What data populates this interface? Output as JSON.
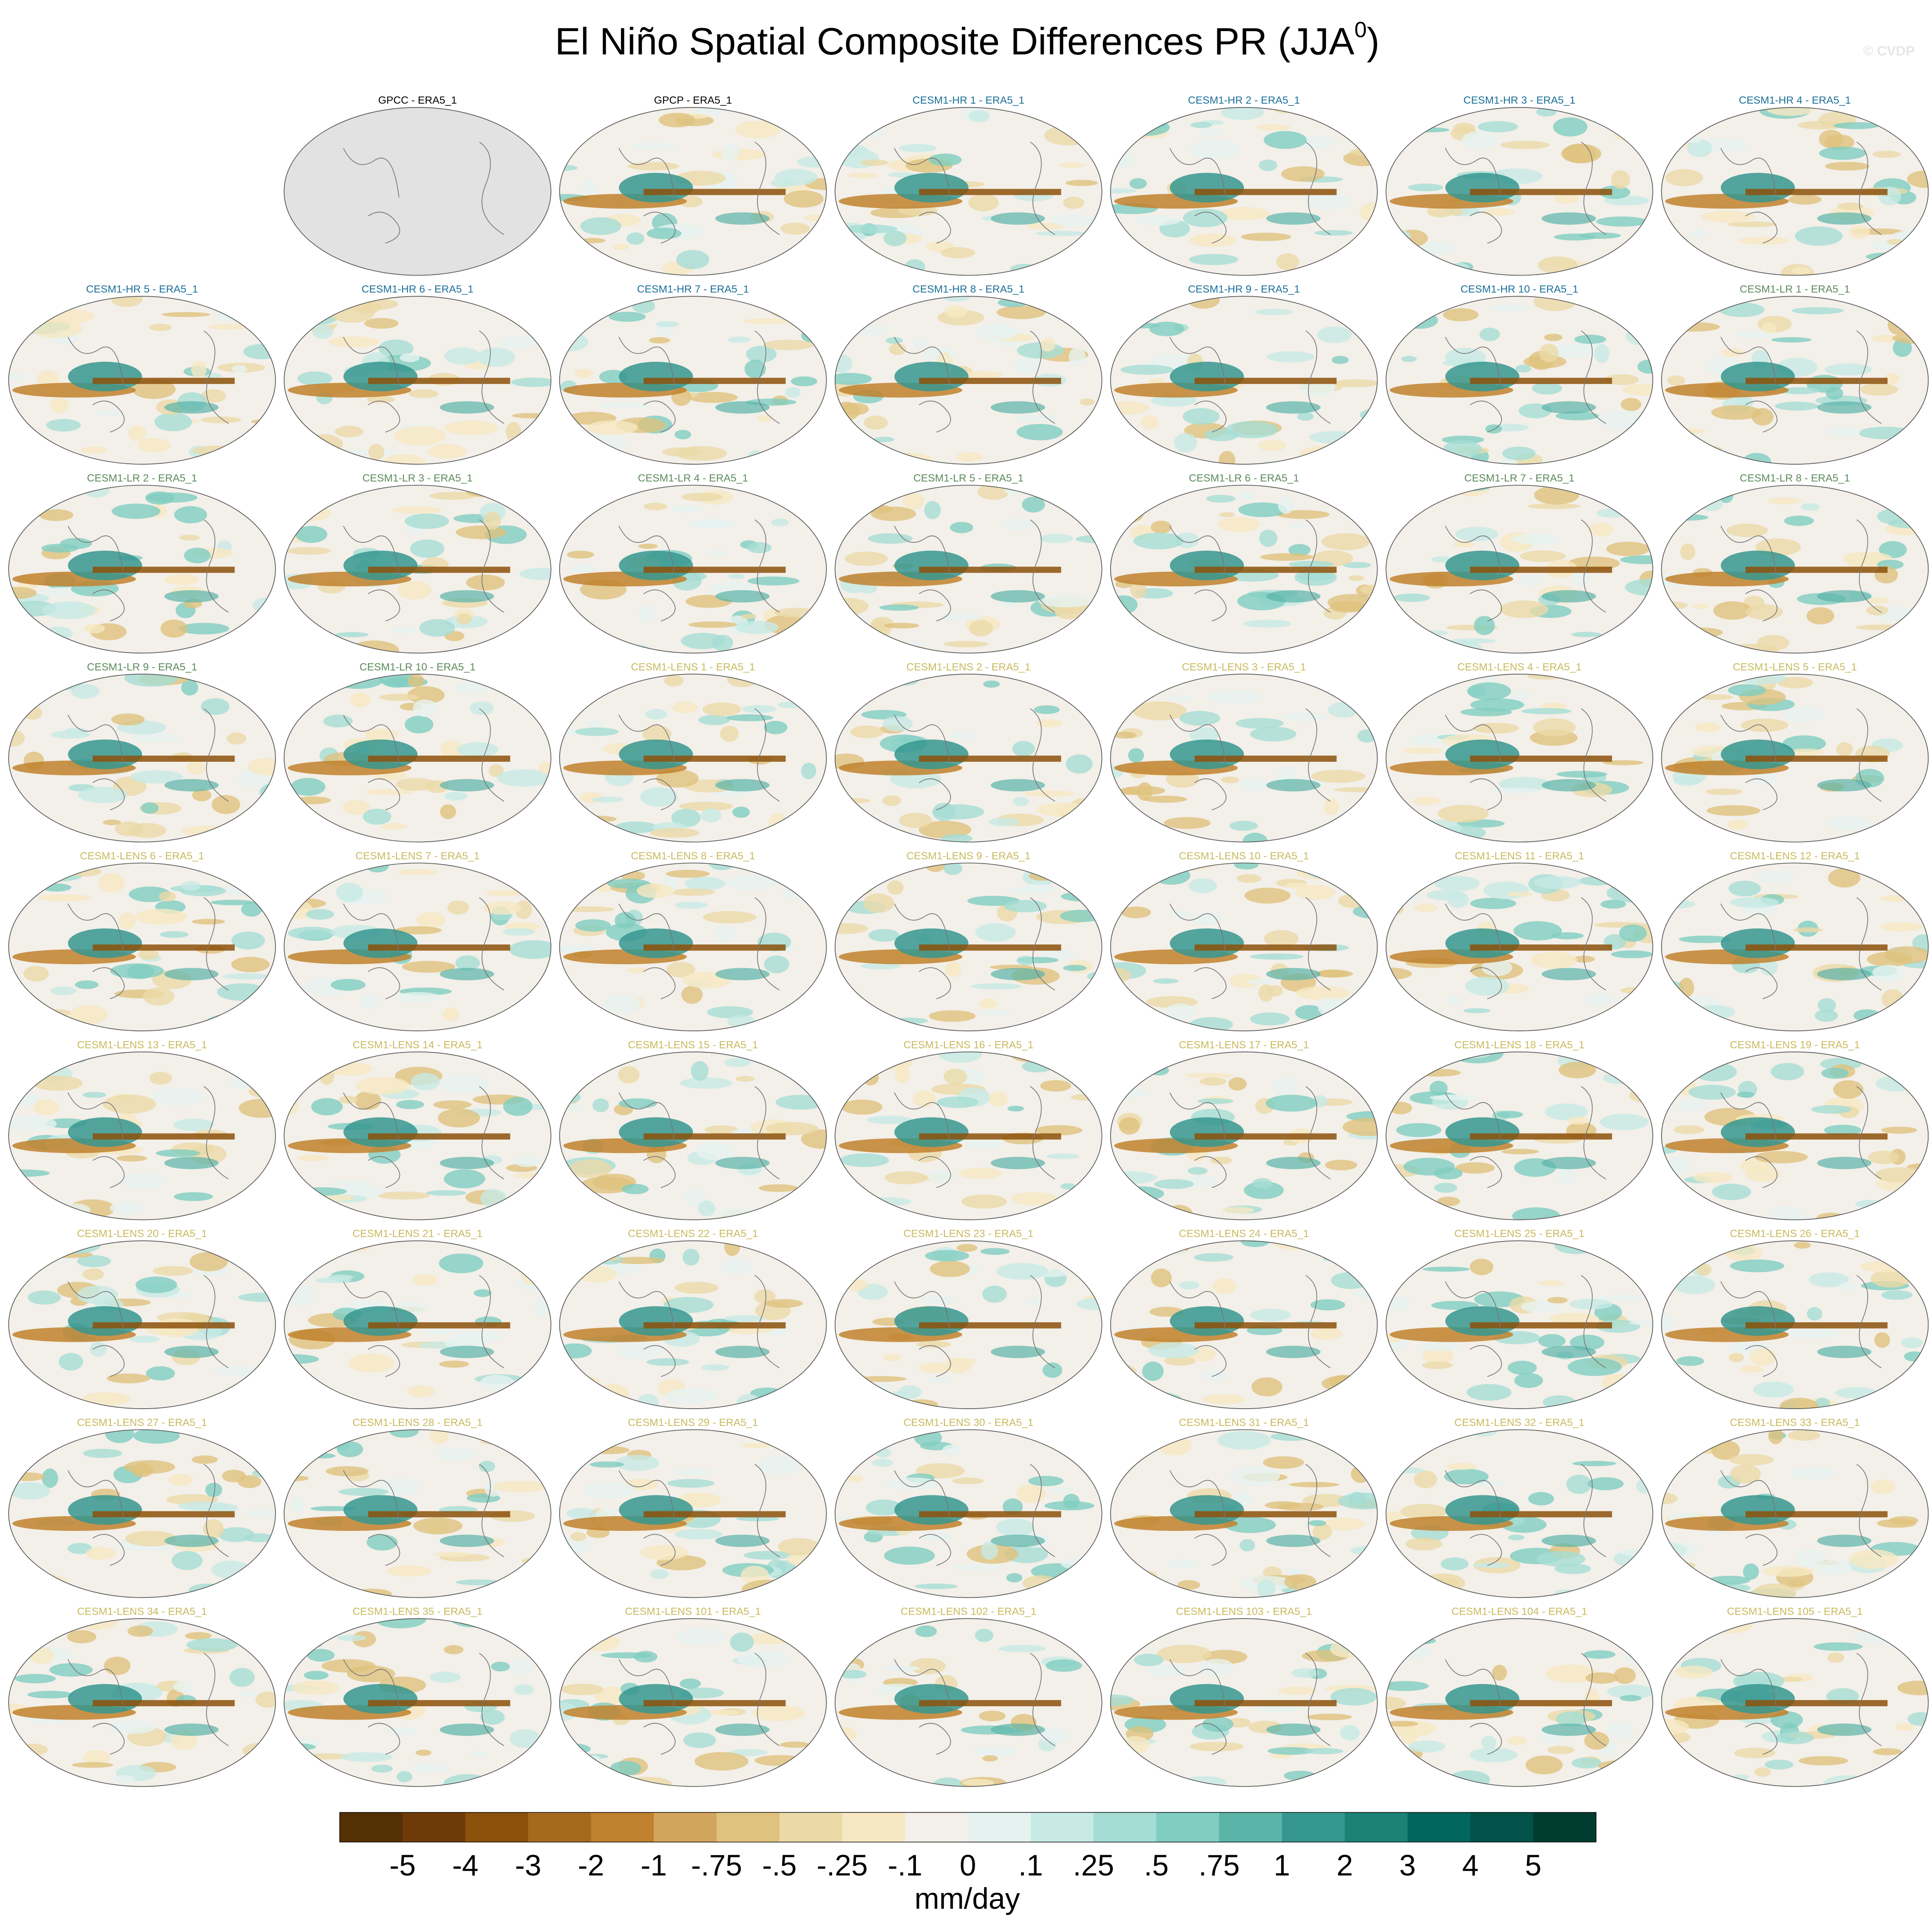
{
  "title": "El Niño Spatial Composite Differences PR (JJA",
  "title_superscript": "0",
  "title_end": ")",
  "watermark": "© CVDP",
  "empty_slots": 1,
  "panels": [
    {
      "title": "GPCC - ERA5_1",
      "color": "#000000",
      "map_color": "#e2e2e2"
    },
    {
      "title": "GPCP - ERA5_1",
      "color": "#000000"
    },
    {
      "title": "CESM1-HR 1 - ERA5_1",
      "color": "#1b6f99"
    },
    {
      "title": "CESM1-HR 2 - ERA5_1",
      "color": "#1b6f99"
    },
    {
      "title": "CESM1-HR 3 - ERA5_1",
      "color": "#1b6f99"
    },
    {
      "title": "CESM1-HR 4 - ERA5_1",
      "color": "#1b6f99"
    },
    {
      "title": "CESM1-HR 5 - ERA5_1",
      "color": "#1b6f99"
    },
    {
      "title": "CESM1-HR 6 - ERA5_1",
      "color": "#1b6f99"
    },
    {
      "title": "CESM1-HR 7 - ERA5_1",
      "color": "#1b6f99"
    },
    {
      "title": "CESM1-HR 8 - ERA5_1",
      "color": "#1b6f99"
    },
    {
      "title": "CESM1-HR 9 - ERA5_1",
      "color": "#1b6f99"
    },
    {
      "title": "CESM1-HR 10 - ERA5_1",
      "color": "#1b6f99"
    },
    {
      "title": "CESM1-LR 1 - ERA5_1",
      "color": "#5b8a5b"
    },
    {
      "title": "CESM1-LR 2 - ERA5_1",
      "color": "#5b8a5b"
    },
    {
      "title": "CESM1-LR 3 - ERA5_1",
      "color": "#5b8a5b"
    },
    {
      "title": "CESM1-LR 4 - ERA5_1",
      "color": "#5b8a5b"
    },
    {
      "title": "CESM1-LR 5 - ERA5_1",
      "color": "#5b8a5b"
    },
    {
      "title": "CESM1-LR 6 - ERA5_1",
      "color": "#5b8a5b"
    },
    {
      "title": "CESM1-LR 7 - ERA5_1",
      "color": "#5b8a5b"
    },
    {
      "title": "CESM1-LR 8 - ERA5_1",
      "color": "#5b8a5b"
    },
    {
      "title": "CESM1-LR 9 - ERA5_1",
      "color": "#5b8a5b"
    },
    {
      "title": "CESM1-LR 10 - ERA5_1",
      "color": "#5b8a5b"
    },
    {
      "title": "CESM1-LENS 1 - ERA5_1",
      "color": "#c9ba5e"
    },
    {
      "title": "CESM1-LENS 2 - ERA5_1",
      "color": "#c9ba5e"
    },
    {
      "title": "CESM1-LENS 3 - ERA5_1",
      "color": "#c9ba5e"
    },
    {
      "title": "CESM1-LENS 4 - ERA5_1",
      "color": "#c9ba5e"
    },
    {
      "title": "CESM1-LENS 5 - ERA5_1",
      "color": "#c9ba5e"
    },
    {
      "title": "CESM1-LENS 6 - ERA5_1",
      "color": "#c9ba5e"
    },
    {
      "title": "CESM1-LENS 7 - ERA5_1",
      "color": "#c9ba5e"
    },
    {
      "title": "CESM1-LENS 8 - ERA5_1",
      "color": "#c9ba5e"
    },
    {
      "title": "CESM1-LENS 9 - ERA5_1",
      "color": "#c9ba5e"
    },
    {
      "title": "CESM1-LENS 10 - ERA5_1",
      "color": "#c9ba5e"
    },
    {
      "title": "CESM1-LENS 11 - ERA5_1",
      "color": "#c9ba5e"
    },
    {
      "title": "CESM1-LENS 12 - ERA5_1",
      "color": "#c9ba5e"
    },
    {
      "title": "CESM1-LENS 13 - ERA5_1",
      "color": "#c9ba5e"
    },
    {
      "title": "CESM1-LENS 14 - ERA5_1",
      "color": "#c9ba5e"
    },
    {
      "title": "CESM1-LENS 15 - ERA5_1",
      "color": "#c9ba5e"
    },
    {
      "title": "CESM1-LENS 16 - ERA5_1",
      "color": "#c9ba5e"
    },
    {
      "title": "CESM1-LENS 17 - ERA5_1",
      "color": "#c9ba5e"
    },
    {
      "title": "CESM1-LENS 18 - ERA5_1",
      "color": "#c9ba5e"
    },
    {
      "title": "CESM1-LENS 19 - ERA5_1",
      "color": "#c9ba5e"
    },
    {
      "title": "CESM1-LENS 20 - ERA5_1",
      "color": "#c9ba5e"
    },
    {
      "title": "CESM1-LENS 21 - ERA5_1",
      "color": "#c9ba5e"
    },
    {
      "title": "CESM1-LENS 22 - ERA5_1",
      "color": "#c9ba5e"
    },
    {
      "title": "CESM1-LENS 23 - ERA5_1",
      "color": "#c9ba5e"
    },
    {
      "title": "CESM1-LENS 24 - ERA5_1",
      "color": "#c9ba5e"
    },
    {
      "title": "CESM1-LENS 25 - ERA5_1",
      "color": "#c9ba5e"
    },
    {
      "title": "CESM1-LENS 26 - ERA5_1",
      "color": "#c9ba5e"
    },
    {
      "title": "CESM1-LENS 27 - ERA5_1",
      "color": "#c9ba5e"
    },
    {
      "title": "CESM1-LENS 28 - ERA5_1",
      "color": "#c9ba5e"
    },
    {
      "title": "CESM1-LENS 29 - ERA5_1",
      "color": "#c9ba5e"
    },
    {
      "title": "CESM1-LENS 30 - ERA5_1",
      "color": "#c9ba5e"
    },
    {
      "title": "CESM1-LENS 31 - ERA5_1",
      "color": "#c9ba5e"
    },
    {
      "title": "CESM1-LENS 32 - ERA5_1",
      "color": "#c9ba5e"
    },
    {
      "title": "CESM1-LENS 33 - ERA5_1",
      "color": "#c9ba5e"
    },
    {
      "title": "CESM1-LENS 34 - ERA5_1",
      "color": "#c9ba5e"
    },
    {
      "title": "CESM1-LENS 35 - ERA5_1",
      "color": "#c9ba5e"
    },
    {
      "title": "CESM1-LENS 101 - ERA5_1",
      "color": "#c9ba5e"
    },
    {
      "title": "CESM1-LENS 102 - ERA5_1",
      "color": "#c9ba5e"
    },
    {
      "title": "CESM1-LENS 103 - ERA5_1",
      "color": "#c9ba5e"
    },
    {
      "title": "CESM1-LENS 104 - ERA5_1",
      "color": "#c9ba5e"
    },
    {
      "title": "CESM1-LENS 105 - ERA5_1",
      "color": "#c9ba5e"
    }
  ],
  "colorbar": {
    "colors": [
      "#543005",
      "#6e3b08",
      "#8c510a",
      "#a66a1f",
      "#bf812d",
      "#d2a55c",
      "#dfc27d",
      "#ebd9a8",
      "#f6e8c3",
      "#f3efe9",
      "#e6f2f0",
      "#c7eae5",
      "#a5ddd5",
      "#80cdc1",
      "#5ab4a8",
      "#35978f",
      "#1c8278",
      "#01665e",
      "#02524a",
      "#003c30"
    ],
    "labels": [
      "-5",
      "-4",
      "-3",
      "-2",
      "-1",
      "-.75",
      "-.5",
      "-.25",
      "-.1",
      "0",
      ".1",
      ".25",
      ".5",
      ".75",
      "1",
      "2",
      "3",
      "4",
      "5"
    ],
    "unit": "mm/day"
  }
}
